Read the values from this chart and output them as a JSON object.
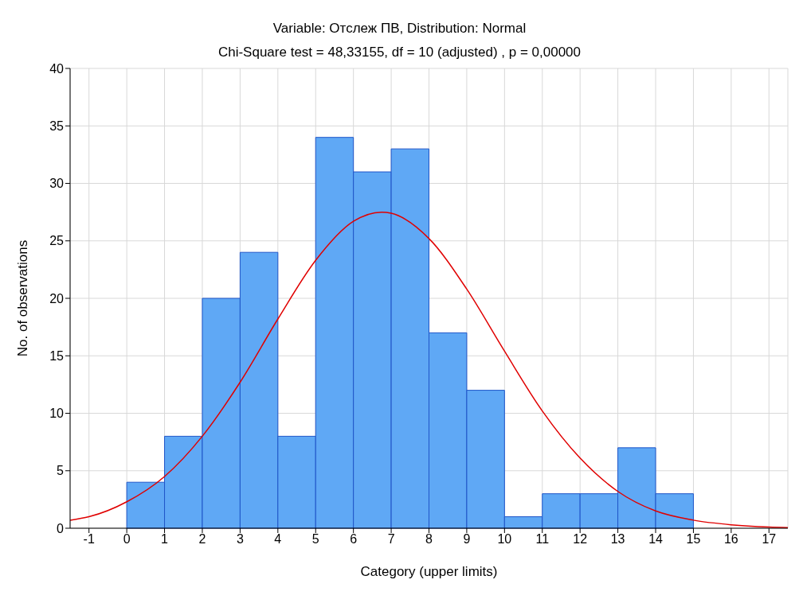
{
  "chart_data": {
    "type": "histogram",
    "title": "Variable: Отслеж ПВ, Distribution: Normal",
    "subtitle": "Chi-Square test = 48,33155, df = 10 (adjusted) , p = 0,00000",
    "xlabel": "Category (upper limits)",
    "ylabel": "No. of observations",
    "series": [
      {
        "color": "#5fa8f5",
        "bins": [
          -1,
          0,
          1,
          2,
          3,
          4,
          5,
          6,
          7,
          8,
          9,
          10,
          11,
          12,
          13,
          14,
          15
        ],
        "values": [
          0,
          4,
          8,
          20,
          24,
          8,
          34,
          31,
          33,
          17,
          12,
          1,
          3,
          3,
          7,
          3
        ]
      },
      {
        "type": "line",
        "color": "#e00000",
        "x": [
          -1.5,
          -1,
          0,
          1,
          2,
          3,
          4,
          5,
          6,
          6.75,
          7,
          8,
          9,
          10,
          11,
          12,
          13,
          14,
          15,
          16,
          17,
          17.5
        ],
        "values": [
          0.7,
          1,
          2.3,
          4.5,
          8,
          12.7,
          18.2,
          23.3,
          26.7,
          27.5,
          27.4,
          25.2,
          20.8,
          15.4,
          10.2,
          6.1,
          3.2,
          1.5,
          0.7,
          0.3,
          0.1,
          0.05
        ]
      }
    ],
    "xlim": [
      -1.5,
      17.5
    ],
    "xticks": [
      -1,
      0,
      1,
      2,
      3,
      4,
      5,
      6,
      7,
      8,
      9,
      10,
      11,
      12,
      13,
      14,
      15,
      16,
      17
    ],
    "ylim": [
      0,
      40
    ],
    "yticks": [
      0,
      5,
      10,
      15,
      20,
      25,
      30,
      35,
      40
    ],
    "grid": true
  }
}
